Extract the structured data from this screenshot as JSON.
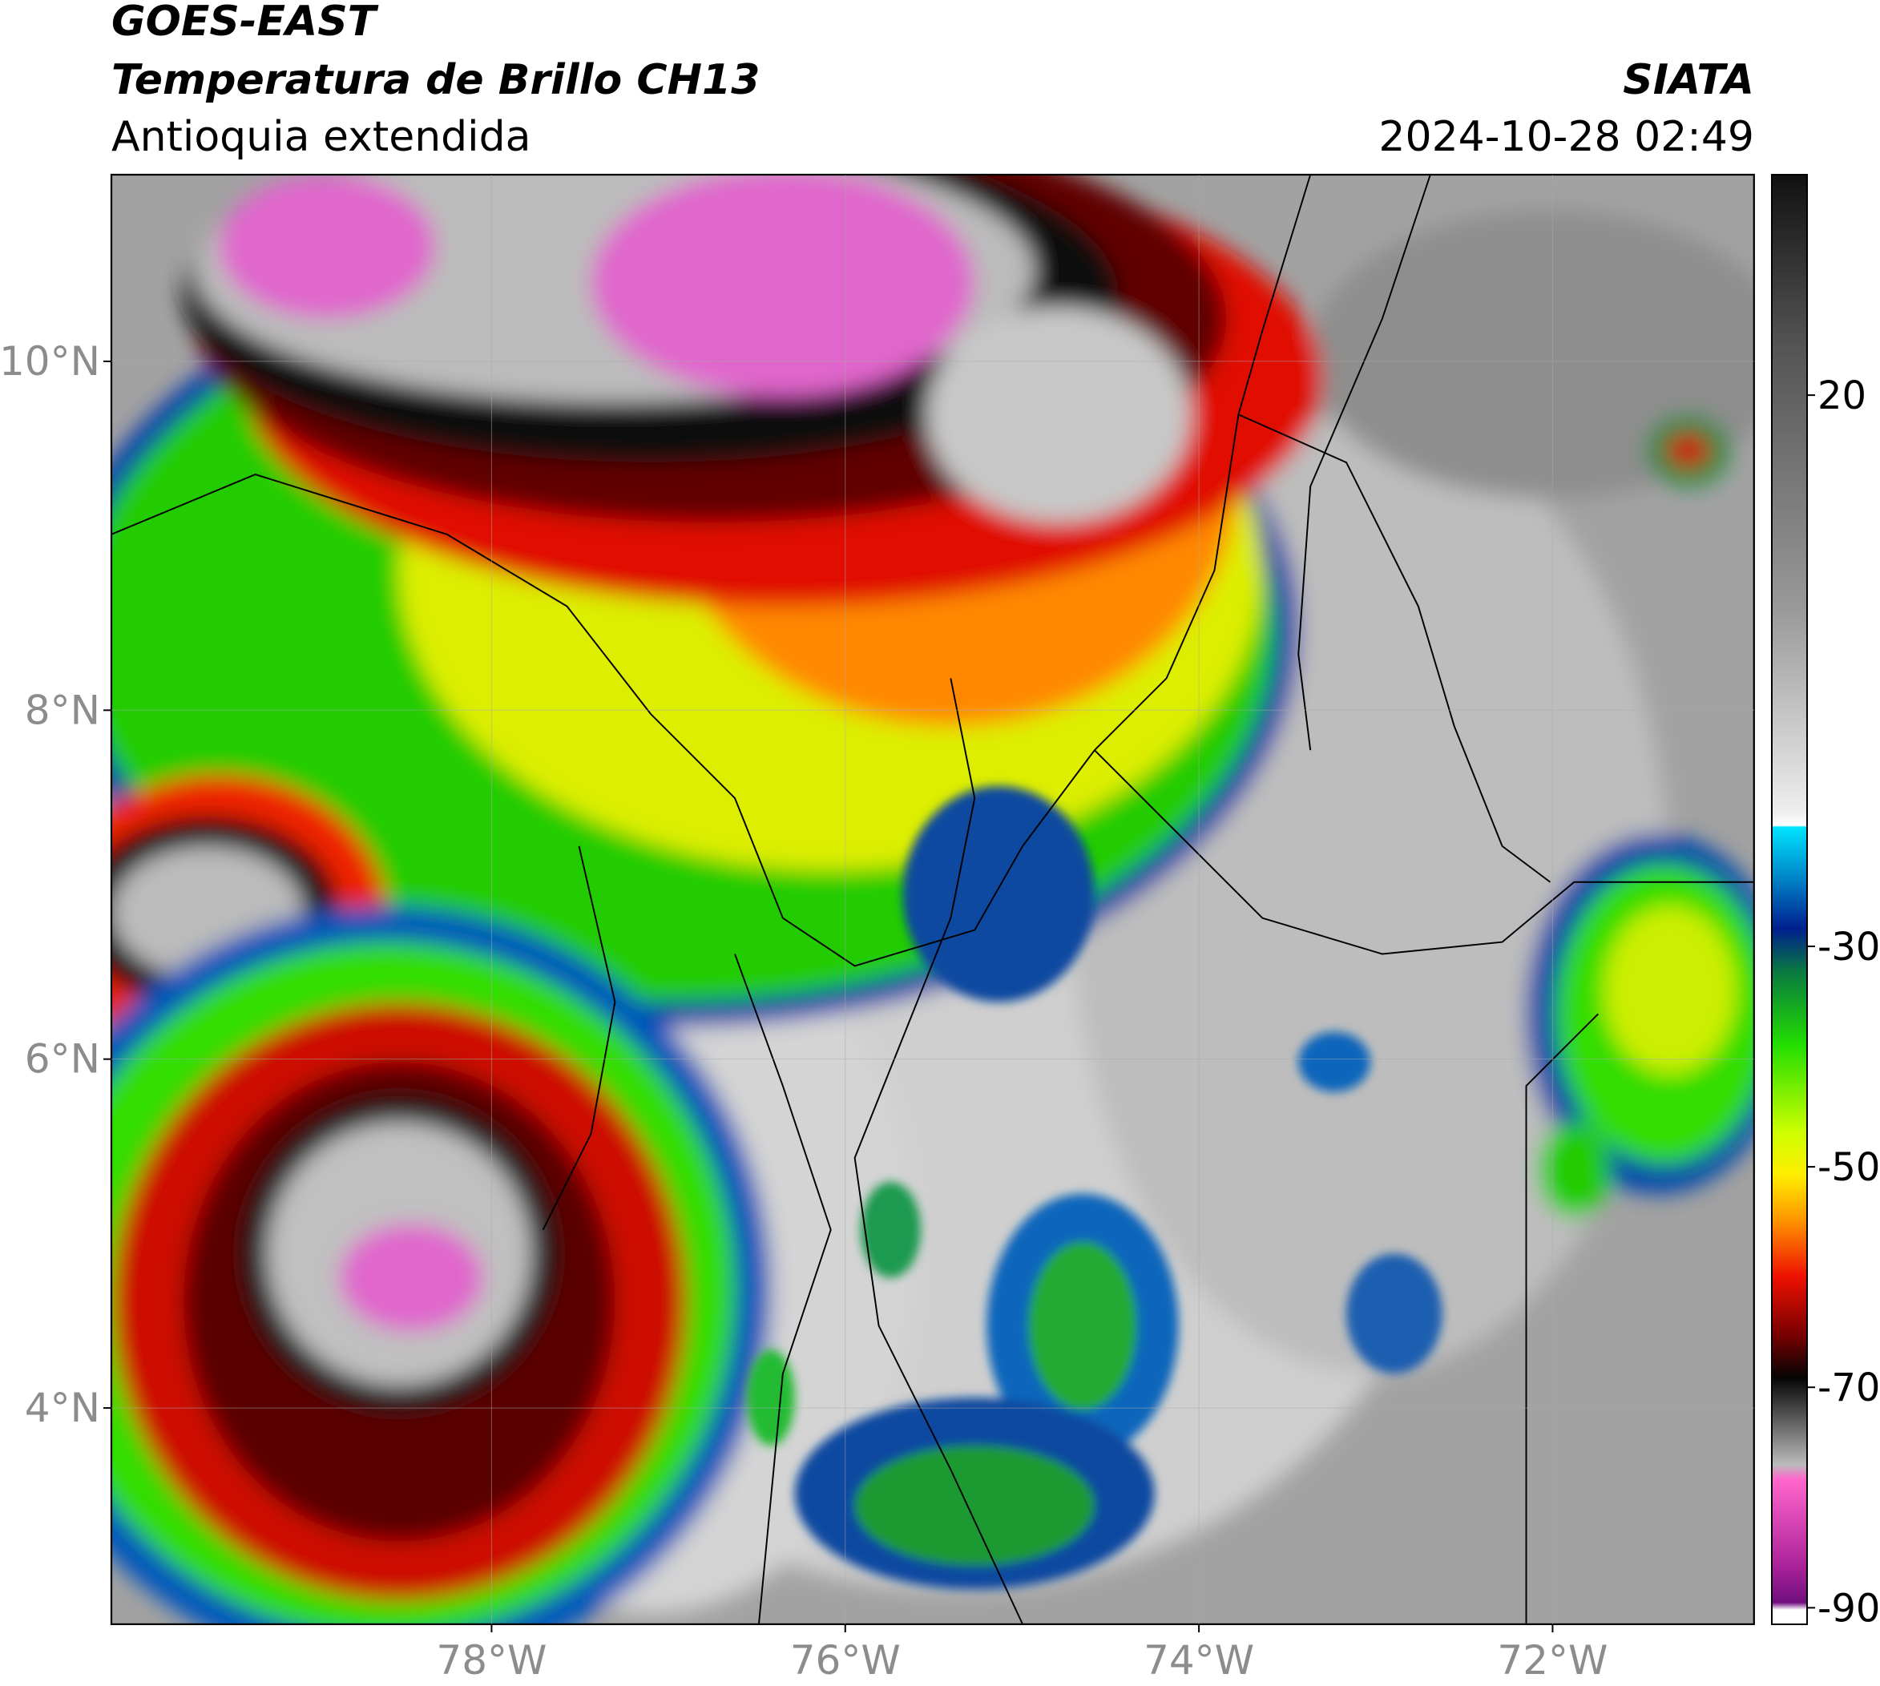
{
  "header": {
    "satellite": "GOES-EAST",
    "product": "Temperatura de Brillo CH13",
    "region": "Antioquia extendida",
    "source": "SIATA",
    "datetime": "2024-10-28 02:49"
  },
  "map": {
    "xlim": [
      -80.15,
      -70.86
    ],
    "ylim": [
      2.76,
      11.07
    ],
    "xticks": [
      {
        "value": -78,
        "label": "78°W"
      },
      {
        "value": -76,
        "label": "76°W"
      },
      {
        "value": -74,
        "label": "74°W"
      },
      {
        "value": -72,
        "label": "72°W"
      }
    ],
    "yticks": [
      {
        "value": 10,
        "label": "10°N"
      },
      {
        "value": 8,
        "label": "8°N"
      },
      {
        "value": 6,
        "label": "6°N"
      },
      {
        "value": 4,
        "label": "4°N"
      }
    ]
  },
  "colorbar": {
    "range": [
      -91.5,
      40
    ],
    "ticks": [
      20,
      -30,
      -50,
      -70,
      -90
    ]
  }
}
